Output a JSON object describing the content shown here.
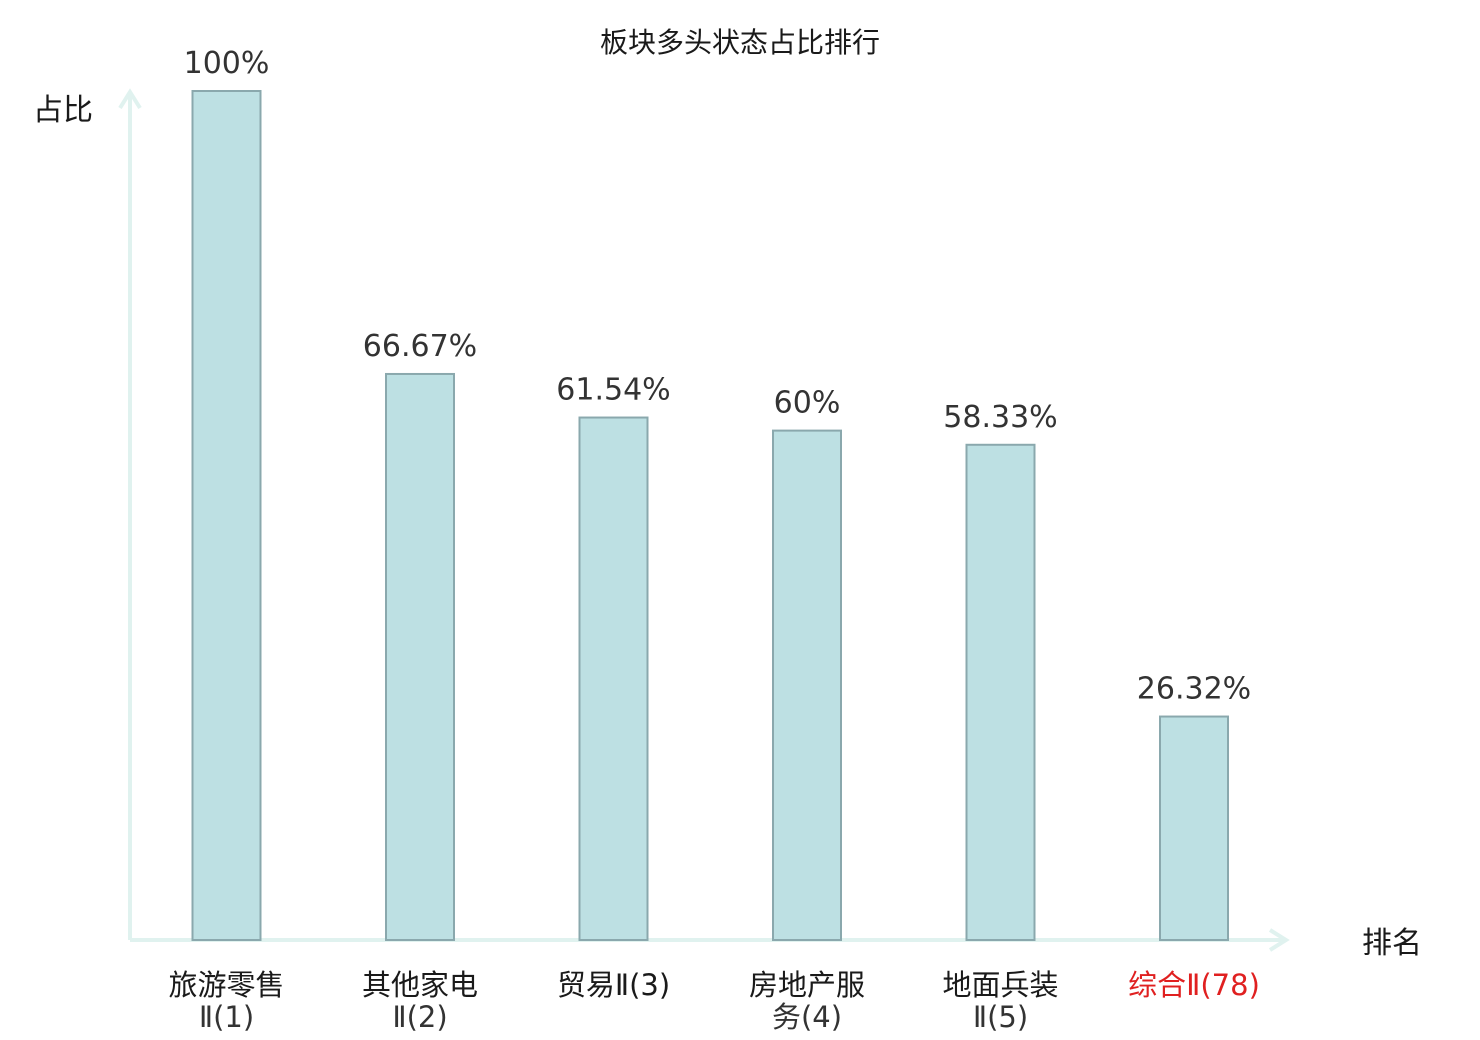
{
  "chart_data": {
    "type": "bar",
    "title": "板块多头状态占比排行",
    "ylabel": "占比",
    "xlabel": "排名",
    "ylim": [
      0,
      100
    ],
    "grid": false,
    "categories": [
      {
        "label": [
          "旅游零售",
          "Ⅱ(1)"
        ],
        "value": 100,
        "value_label": "100%",
        "highlight": false
      },
      {
        "label": [
          "其他家电",
          "Ⅱ(2)"
        ],
        "value": 66.67,
        "value_label": "66.67%",
        "highlight": false
      },
      {
        "label": [
          "贸易Ⅱ(3)"
        ],
        "value": 61.54,
        "value_label": "61.54%",
        "highlight": false
      },
      {
        "label": [
          "房地产服",
          "务(4)"
        ],
        "value": 60,
        "value_label": "60%",
        "highlight": false
      },
      {
        "label": [
          "地面兵装",
          "Ⅱ(5)"
        ],
        "value": 58.33,
        "value_label": "58.33%",
        "highlight": false
      },
      {
        "label": [
          "综合Ⅱ(78)"
        ],
        "value": 26.32,
        "value_label": "26.32%",
        "highlight": true
      }
    ],
    "colors": {
      "bar_fill": "#bde0e3",
      "bar_stroke": "#8aa8ad",
      "axis": "#e0f2ef",
      "highlight_text": "#e02020",
      "text": "#1a1a1a"
    }
  }
}
